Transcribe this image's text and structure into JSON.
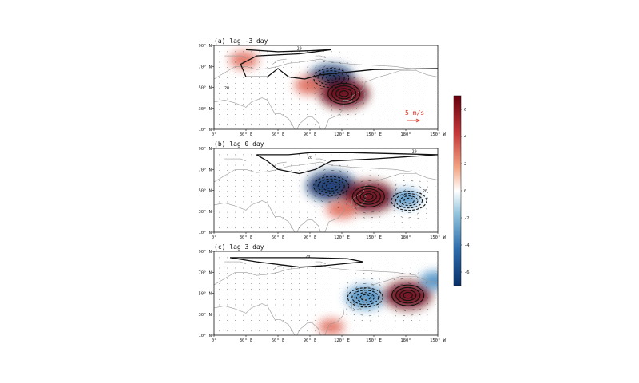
{
  "chart_data": {
    "type": "heatmap",
    "title": "",
    "x_ticks": [
      "0°",
      "30° E",
      "60° E",
      "90° E",
      "120° E",
      "150° E",
      "180°",
      "150° W"
    ],
    "y_ticks": [
      "10° N",
      "30° N",
      "50° N",
      "70° N",
      "90° N"
    ],
    "xlim": [
      0,
      210
    ],
    "ylim": [
      10,
      90
    ],
    "colorbar": {
      "range": [
        -7,
        7
      ],
      "ticks": [
        "6",
        "4",
        "2",
        "0",
        "-2",
        "-4",
        "-6"
      ],
      "colormap": "RdBu_r",
      "colors": {
        "neg_max": "#08306b",
        "neg_mid": "#4a8fc4",
        "zero": "#ffffff",
        "pos_mid": "#e0695a",
        "pos_max": "#67000d"
      }
    },
    "reference_vector": {
      "label": "5 m/s",
      "color": "#e0271b"
    },
    "panels": [
      {
        "label": "(a)  lag -3 day",
        "contour_labels": [
          {
            "text": "20",
            "lon": 80,
            "lat": 86
          },
          {
            "text": "20",
            "lon": 12,
            "lat": 48
          }
        ],
        "anomalies": [
          {
            "lon": 28,
            "lat": 76,
            "value": 2.0
          },
          {
            "lon": 110,
            "lat": 59,
            "value": -5.0
          },
          {
            "lon": 122,
            "lat": 44,
            "value": 6.0
          },
          {
            "lon": 90,
            "lat": 52,
            "value": 2.5
          }
        ],
        "cyclones": [
          {
            "lon": 122,
            "lat": 44
          }
        ],
        "anticyclones": [
          {
            "lon": 110,
            "lat": 59
          }
        ]
      },
      {
        "label": "(b)  lag 0 day",
        "contour_labels": [
          {
            "text": "20",
            "lon": 188,
            "lat": 86
          },
          {
            "text": "20",
            "lon": 90,
            "lat": 80
          },
          {
            "text": "20",
            "lon": 198,
            "lat": 48
          }
        ],
        "anomalies": [
          {
            "lon": 110,
            "lat": 54,
            "value": -6.0
          },
          {
            "lon": 145,
            "lat": 44,
            "value": 6.5
          },
          {
            "lon": 180,
            "lat": 42,
            "value": -2.0
          },
          {
            "lon": 120,
            "lat": 32,
            "value": 2.5
          }
        ],
        "cyclones": [
          {
            "lon": 145,
            "lat": 44
          }
        ],
        "anticyclones": [
          {
            "lon": 110,
            "lat": 54
          },
          {
            "lon": 183,
            "lat": 40
          }
        ]
      },
      {
        "label": "(c)  lag 3 day",
        "contour_labels": [
          {
            "text": "20",
            "lon": 88,
            "lat": 84
          }
        ],
        "anomalies": [
          {
            "lon": 142,
            "lat": 46,
            "value": -4.0
          },
          {
            "lon": 182,
            "lat": 48,
            "value": 5.5
          },
          {
            "lon": 208,
            "lat": 62,
            "value": -2.5
          },
          {
            "lon": 110,
            "lat": 18,
            "value": 1.5
          }
        ],
        "cyclones": [
          {
            "lon": 182,
            "lat": 48
          }
        ],
        "anticyclones": [
          {
            "lon": 142,
            "lat": 46
          }
        ]
      }
    ]
  }
}
